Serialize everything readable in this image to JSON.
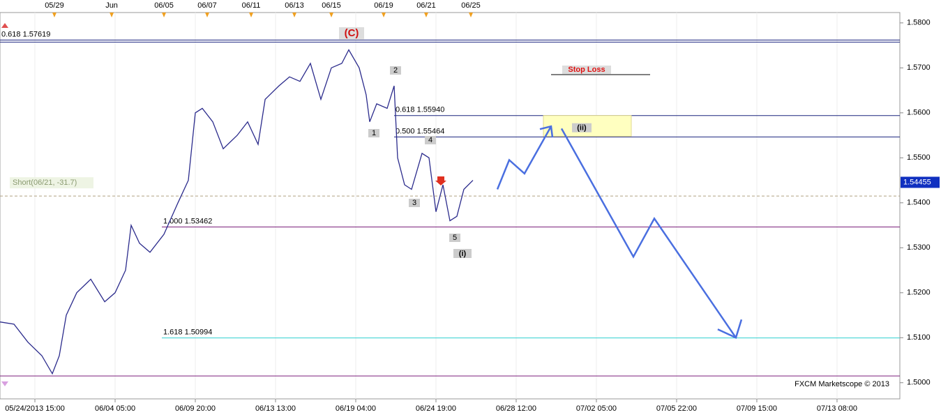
{
  "chart_data": {
    "type": "line",
    "x": [
      -0.435,
      -0.261,
      -0.087,
      0.087,
      0.217,
      0.304,
      0.391,
      0.522,
      0.696,
      0.87,
      1.0,
      1.13,
      1.2,
      1.304,
      1.435,
      1.609,
      1.783,
      1.913,
      2.0,
      2.087,
      2.217,
      2.348,
      2.522,
      2.652,
      2.783,
      2.87,
      3.043,
      3.174,
      3.304,
      3.435,
      3.565,
      3.696,
      3.826,
      3.913,
      4.043,
      4.13,
      4.174,
      4.261,
      4.391,
      4.478,
      4.522,
      4.609,
      4.696,
      4.826,
      4.913,
      5.0,
      5.087,
      5.174,
      5.261,
      5.348,
      5.461
    ],
    "series": [
      {
        "color": "#2b2b8c",
        "values": [
          1.5135,
          1.513,
          1.509,
          1.506,
          1.502,
          1.506,
          1.515,
          1.52,
          1.523,
          1.518,
          1.52,
          1.525,
          1.535,
          1.531,
          1.529,
          1.533,
          1.54,
          1.545,
          1.56,
          1.561,
          1.558,
          1.552,
          1.555,
          1.558,
          1.553,
          1.563,
          1.566,
          1.568,
          1.567,
          1.571,
          1.563,
          1.57,
          1.571,
          1.574,
          1.57,
          1.564,
          1.558,
          1.562,
          1.561,
          1.566,
          1.55,
          1.544,
          1.543,
          1.551,
          1.55,
          1.538,
          1.544,
          1.536,
          1.537,
          1.543,
          1.545
        ]
      }
    ],
    "projection": {
      "color": "#4a6fe0",
      "x": [
        5.765,
        5.913,
        6.104,
        6.435,
        null,
        6.565,
        7.461,
        7.722,
        8.739
      ],
      "values": [
        1.543,
        1.5495,
        1.5465,
        1.557,
        null,
        1.5565,
        1.528,
        1.5365,
        1.51
      ]
    },
    "xlim": [
      -0.435,
      10.783
    ],
    "ylim": [
      1.4964,
      1.5823
    ],
    "xticks": [
      {
        "value": 0,
        "label": "05/24/2013 15:00"
      },
      {
        "value": 1,
        "label": "06/04 05:00"
      },
      {
        "value": 2,
        "label": "06/09 20:00"
      },
      {
        "value": 3,
        "label": "06/13 13:00"
      },
      {
        "value": 4,
        "label": "06/19 04:00"
      },
      {
        "value": 5,
        "label": "06/24 19:00"
      },
      {
        "value": 6,
        "label": "06/28 12:00"
      },
      {
        "value": 7,
        "label": "07/02 05:00"
      },
      {
        "value": 8,
        "label": "07/05 22:00"
      },
      {
        "value": 9,
        "label": "07/09 15:00"
      },
      {
        "value": 10,
        "label": "07/13 08:00"
      }
    ],
    "top_ticks": [
      {
        "value": 0.243,
        "label": "05/29"
      },
      {
        "value": 0.957,
        "label": "Jun"
      },
      {
        "value": 1.609,
        "label": "06/05"
      },
      {
        "value": 2.148,
        "label": "06/07"
      },
      {
        "value": 2.696,
        "label": "06/11"
      },
      {
        "value": 3.235,
        "label": "06/13"
      },
      {
        "value": 3.696,
        "label": "06/15"
      },
      {
        "value": 4.348,
        "label": "06/19"
      },
      {
        "value": 4.878,
        "label": "06/21"
      },
      {
        "value": 5.435,
        "label": "06/25"
      }
    ],
    "yticks": [
      {
        "value": 1.5,
        "label": "1.5000"
      },
      {
        "value": 1.51,
        "label": "1.5100"
      },
      {
        "value": 1.52,
        "label": "1.5200"
      },
      {
        "value": 1.53,
        "label": "1.5300"
      },
      {
        "value": 1.54,
        "label": "1.5400"
      },
      {
        "value": 1.55,
        "label": "1.5500"
      },
      {
        "value": 1.56,
        "label": "1.5600"
      },
      {
        "value": 1.57,
        "label": "1.5700"
      },
      {
        "value": 1.58,
        "label": "1.5800"
      }
    ],
    "levels": [
      {
        "ratio": "0.618",
        "price": "1.57619",
        "value": 1.57619,
        "color": "#1a237e"
      },
      {
        "ratio": "0.618",
        "price": "1.55940",
        "value": 1.5594,
        "color": "#1a237e"
      },
      {
        "ratio": "0.500",
        "price": "1.55464",
        "value": 1.55464,
        "color": "#1a237e"
      },
      {
        "ratio": "1.000",
        "price": "1.53462",
        "value": 1.53462,
        "color": "#7b1f7b"
      },
      {
        "ratio": "1.618",
        "price": "1.50994",
        "value": 1.50994,
        "color": "#2fd0d0"
      }
    ],
    "support": {
      "value": 1.5015,
      "color": "#7b1f7b"
    },
    "short": {
      "label": "Short(06/21, -31.7)",
      "value": 1.5415
    },
    "stop_loss": {
      "label": "Stop Loss",
      "value": 1.5685
    },
    "zone": {
      "label": "(ii)",
      "low": 1.5548,
      "high": 1.5594
    },
    "last_price": 1.54455,
    "wave_c": "(C)",
    "waves": [
      "1",
      "2",
      "3",
      "4",
      "5",
      "(i)"
    ],
    "credit": "FXCM Marketscope © 2013"
  }
}
